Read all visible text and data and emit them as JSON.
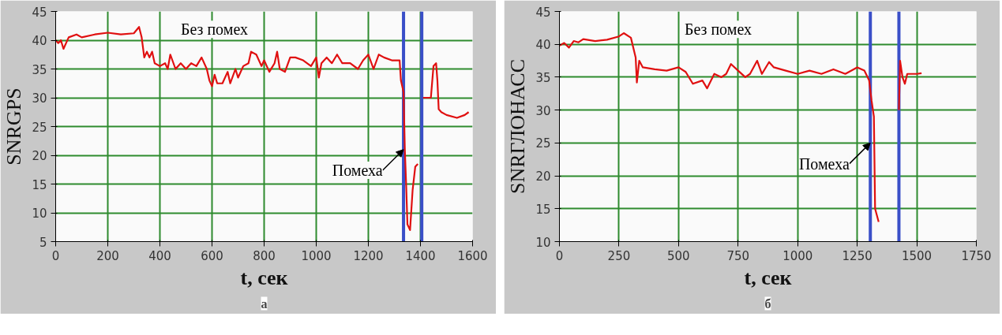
{
  "chart_data": [
    {
      "type": "line",
      "title": "а",
      "xlabel": "t, сек",
      "ylabel": "SNRGPS",
      "xlim": [
        0,
        1600
      ],
      "xticks": [
        0,
        200,
        400,
        600,
        800,
        1000,
        1200,
        1400,
        1600
      ],
      "ylim": [
        5,
        45
      ],
      "yticks": [
        5,
        10,
        15,
        20,
        25,
        30,
        35,
        40,
        45
      ],
      "grid": true,
      "x": [
        0,
        10,
        20,
        30,
        40,
        50,
        80,
        100,
        150,
        200,
        250,
        300,
        320,
        330,
        340,
        350,
        360,
        370,
        380,
        400,
        420,
        430,
        440,
        460,
        480,
        500,
        520,
        540,
        560,
        580,
        590,
        600,
        610,
        620,
        640,
        660,
        670,
        690,
        700,
        720,
        740,
        750,
        770,
        790,
        800,
        820,
        840,
        850,
        860,
        880,
        900,
        920,
        950,
        980,
        1000,
        1010,
        1020,
        1040,
        1060,
        1080,
        1100,
        1130,
        1160,
        1180,
        1200,
        1220,
        1240,
        1260,
        1290,
        1320,
        1325,
        1335,
        1340,
        1345,
        1350,
        1360,
        1370,
        1380,
        1390,
        1400,
        1410,
        1440,
        1450,
        1460,
        1465,
        1470,
        1480,
        1500,
        1540,
        1570,
        1585
      ],
      "series": [
        {
          "color": "#e01010",
          "values": [
            40,
            39.5,
            40,
            38.5,
            39.5,
            40.5,
            41,
            40.5,
            41,
            41.3,
            41,
            41.2,
            42.3,
            40.5,
            37,
            38,
            37,
            38,
            36,
            35.5,
            36,
            35,
            37.5,
            35,
            36,
            35,
            36,
            35.5,
            37,
            35,
            33,
            32,
            34,
            32.5,
            32.5,
            34.5,
            32.5,
            35,
            33.5,
            35.5,
            36,
            38,
            37.5,
            35.5,
            36.5,
            34.5,
            36,
            38,
            35,
            34.5,
            37,
            37,
            36.5,
            35.5,
            37,
            33.5,
            36,
            37,
            36,
            37.5,
            36,
            36,
            35,
            36.5,
            37.5,
            35,
            37.5,
            37,
            36.5,
            36.5,
            33,
            31,
            21,
            15,
            8,
            7,
            14,
            18,
            18.5,
            null,
            30,
            30,
            35.5,
            36,
            33,
            28,
            27.5,
            27,
            26.5,
            27,
            27.5
          ]
        }
      ],
      "ref_lines": [
        {
          "axis": "x",
          "value": 1335,
          "color": "#3a4fc8"
        },
        {
          "axis": "x",
          "value": 1405,
          "color": "#3a4fc8"
        }
      ],
      "annotations": [
        "Без помех",
        {
          "text": "Помеха",
          "x": 1335,
          "y": 21
        }
      ]
    },
    {
      "type": "line",
      "title": "б",
      "xlabel": "t, сек",
      "ylabel": "SNRГЛОНАСС",
      "xlim": [
        0,
        1750
      ],
      "xticks": [
        0,
        250,
        500,
        750,
        1000,
        1250,
        1500,
        1750
      ],
      "ylim": [
        10,
        45
      ],
      "yticks": [
        10,
        15,
        20,
        25,
        30,
        35,
        40,
        45
      ],
      "grid": true,
      "x": [
        0,
        20,
        40,
        60,
        80,
        100,
        150,
        200,
        250,
        270,
        300,
        320,
        325,
        335,
        350,
        400,
        450,
        500,
        530,
        560,
        600,
        620,
        650,
        680,
        700,
        720,
        750,
        780,
        800,
        830,
        850,
        880,
        900,
        950,
        1000,
        1050,
        1100,
        1150,
        1200,
        1250,
        1280,
        1300,
        1310,
        1320,
        1325,
        1340,
        1380,
        1425,
        1430,
        1440,
        1450,
        1460,
        1500,
        1520
      ],
      "series": [
        {
          "color": "#e01010",
          "values": [
            39.8,
            40.2,
            39.5,
            40.5,
            40.3,
            40.8,
            40.5,
            40.7,
            41.2,
            41.7,
            41,
            38,
            34.2,
            37.5,
            36.5,
            36.2,
            36,
            36.5,
            35.8,
            34,
            34.5,
            33.3,
            35.5,
            35,
            35.5,
            37,
            36,
            35,
            35.5,
            37.5,
            35.5,
            37.3,
            36.5,
            36,
            35.5,
            36,
            35.5,
            36.2,
            35.5,
            36.5,
            36,
            34.5,
            31.5,
            29,
            15,
            13,
            null,
            30,
            37.5,
            35,
            34,
            35.5,
            35.5,
            35.6
          ]
        }
      ],
      "ref_lines": [
        {
          "axis": "x",
          "value": 1305,
          "color": "#3a4fc8"
        },
        {
          "axis": "x",
          "value": 1425,
          "color": "#3a4fc8"
        }
      ],
      "annotations": [
        "Без помех",
        {
          "text": "Помеха",
          "x": 1305,
          "y": 25
        }
      ]
    }
  ]
}
